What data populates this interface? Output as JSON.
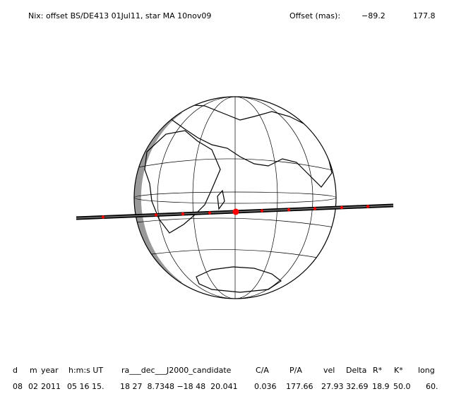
{
  "header": {
    "title": "Nix: offset BS/DE413 01Jul11, star MA 10nov09",
    "offset_label": "Offset (mas):",
    "offset_x": "−89.2",
    "offset_y": "177.8"
  },
  "table": {
    "columns": [
      "d",
      "m",
      "year",
      "h:m:s UT",
      "ra___dec___J2000_candidate",
      "C/A",
      "P/A",
      "vel",
      "Delta",
      "R*",
      "K*",
      "long"
    ],
    "row": [
      "08",
      "02",
      "2011",
      "05 16 15.",
      "18 27  8.7348 −18 48  20.041",
      "0.036",
      "177.66",
      "27.93",
      "32.69",
      "18.9",
      "50.0",
      "60."
    ]
  }
}
